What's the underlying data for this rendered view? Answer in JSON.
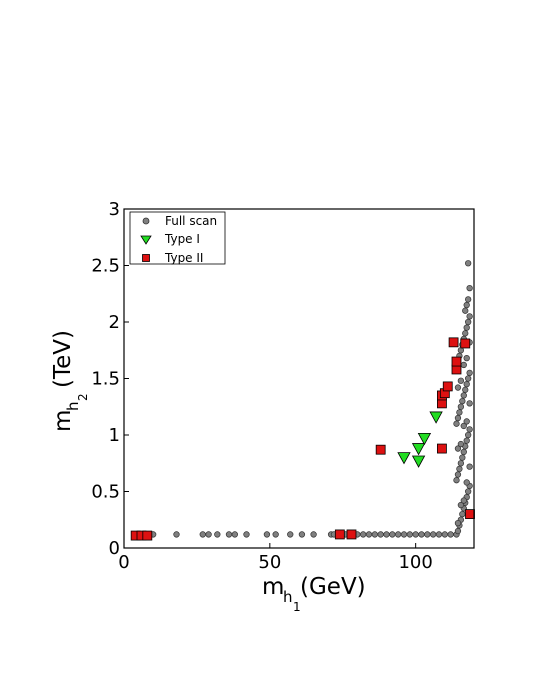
{
  "chart_data": {
    "type": "scatter",
    "title": "",
    "xlabel": {
      "main": "m",
      "sub": "h",
      "subsub": "1",
      "unit": "(GeV)"
    },
    "ylabel": {
      "main": "m",
      "sub": "h",
      "subsub": "2",
      "unit": "(TeV)"
    },
    "xlim": [
      0,
      120
    ],
    "ylim": [
      0,
      3
    ],
    "x_ticks": [
      0,
      50,
      100
    ],
    "x_tick_labels": [
      "0",
      "50",
      "100"
    ],
    "y_ticks": [
      0,
      0.5,
      1,
      1.5,
      2,
      2.5,
      3
    ],
    "y_tick_labels": [
      "0",
      "0.5",
      "1",
      "1.5",
      "2",
      "2.5",
      "3"
    ],
    "grid": false,
    "legend_position": "top-left",
    "series": [
      {
        "name": "Full scan",
        "marker": "circle",
        "color": "#808080",
        "points": [
          [
            4,
            0.12
          ],
          [
            5,
            0.12
          ],
          [
            6,
            0.12
          ],
          [
            7,
            0.12
          ],
          [
            8,
            0.12
          ],
          [
            9,
            0.12
          ],
          [
            10,
            0.12
          ],
          [
            18,
            0.12
          ],
          [
            27,
            0.12
          ],
          [
            29,
            0.12
          ],
          [
            32,
            0.12
          ],
          [
            36,
            0.12
          ],
          [
            38,
            0.12
          ],
          [
            42,
            0.12
          ],
          [
            49,
            0.12
          ],
          [
            52,
            0.12
          ],
          [
            57,
            0.12
          ],
          [
            61,
            0.12
          ],
          [
            65,
            0.12
          ],
          [
            71,
            0.12
          ],
          [
            72,
            0.12
          ],
          [
            74,
            0.12
          ],
          [
            76,
            0.12
          ],
          [
            78,
            0.12
          ],
          [
            80,
            0.12
          ],
          [
            82,
            0.12
          ],
          [
            84,
            0.12
          ],
          [
            86,
            0.12
          ],
          [
            88,
            0.12
          ],
          [
            90,
            0.12
          ],
          [
            92,
            0.12
          ],
          [
            94,
            0.12
          ],
          [
            96,
            0.12
          ],
          [
            98,
            0.12
          ],
          [
            100,
            0.12
          ],
          [
            102,
            0.12
          ],
          [
            104,
            0.12
          ],
          [
            106,
            0.12
          ],
          [
            108,
            0.12
          ],
          [
            110,
            0.12
          ],
          [
            112,
            0.12
          ],
          [
            114,
            0.12
          ],
          [
            114.5,
            0.15
          ],
          [
            115,
            0.2
          ],
          [
            115.5,
            0.25
          ],
          [
            116,
            0.3
          ],
          [
            116.5,
            0.35
          ],
          [
            117,
            0.4
          ],
          [
            117.5,
            0.45
          ],
          [
            118,
            0.5
          ],
          [
            118.5,
            0.55
          ],
          [
            114,
            0.6
          ],
          [
            114.5,
            0.65
          ],
          [
            115,
            0.7
          ],
          [
            115.5,
            0.75
          ],
          [
            116,
            0.8
          ],
          [
            116.5,
            0.85
          ],
          [
            117,
            0.9
          ],
          [
            117.5,
            0.95
          ],
          [
            118,
            1.0
          ],
          [
            118.5,
            1.05
          ],
          [
            114,
            1.1
          ],
          [
            114.5,
            1.15
          ],
          [
            115,
            1.2
          ],
          [
            115.5,
            1.25
          ],
          [
            116,
            1.3
          ],
          [
            116.5,
            1.35
          ],
          [
            117,
            1.4
          ],
          [
            117.5,
            1.45
          ],
          [
            118,
            1.5
          ],
          [
            118.5,
            1.55
          ],
          [
            114,
            1.6
          ],
          [
            114.5,
            1.65
          ],
          [
            115,
            1.7
          ],
          [
            115.5,
            1.75
          ],
          [
            116,
            1.8
          ],
          [
            116.5,
            1.85
          ],
          [
            117,
            1.9
          ],
          [
            117.5,
            1.95
          ],
          [
            118,
            2.0
          ],
          [
            118.5,
            2.05
          ],
          [
            117,
            2.1
          ],
          [
            117.5,
            2.15
          ],
          [
            118,
            2.2
          ],
          [
            118.5,
            2.3
          ],
          [
            118,
            2.52
          ],
          [
            114.5,
            0.22
          ],
          [
            115.5,
            0.38
          ],
          [
            116.5,
            0.42
          ],
          [
            117.5,
            0.58
          ],
          [
            118.5,
            0.72
          ],
          [
            114.5,
            0.88
          ],
          [
            115.5,
            0.92
          ],
          [
            116.5,
            1.08
          ],
          [
            117.5,
            1.12
          ],
          [
            118.5,
            1.28
          ],
          [
            114.5,
            1.42
          ],
          [
            115.5,
            1.48
          ],
          [
            116.5,
            1.62
          ],
          [
            117.5,
            1.68
          ],
          [
            118.5,
            1.82
          ]
        ]
      },
      {
        "name": "Type I",
        "marker": "triangle-down",
        "color": "#22dd22",
        "points": [
          [
            96,
            0.8
          ],
          [
            101,
            0.77
          ],
          [
            101,
            0.88
          ],
          [
            103,
            0.97
          ],
          [
            107,
            1.16
          ]
        ]
      },
      {
        "name": "Type II",
        "marker": "square",
        "color": "#dd1111",
        "points": [
          [
            4,
            0.11
          ],
          [
            6,
            0.11
          ],
          [
            8,
            0.11
          ],
          [
            74,
            0.12
          ],
          [
            78,
            0.12
          ],
          [
            88,
            0.87
          ],
          [
            109,
            0.88
          ],
          [
            109,
            1.28
          ],
          [
            109,
            1.35
          ],
          [
            110,
            1.37
          ],
          [
            111,
            1.43
          ],
          [
            114,
            1.58
          ],
          [
            114,
            1.65
          ],
          [
            113,
            1.82
          ],
          [
            117,
            1.81
          ],
          [
            119,
            0.3
          ]
        ]
      }
    ]
  }
}
